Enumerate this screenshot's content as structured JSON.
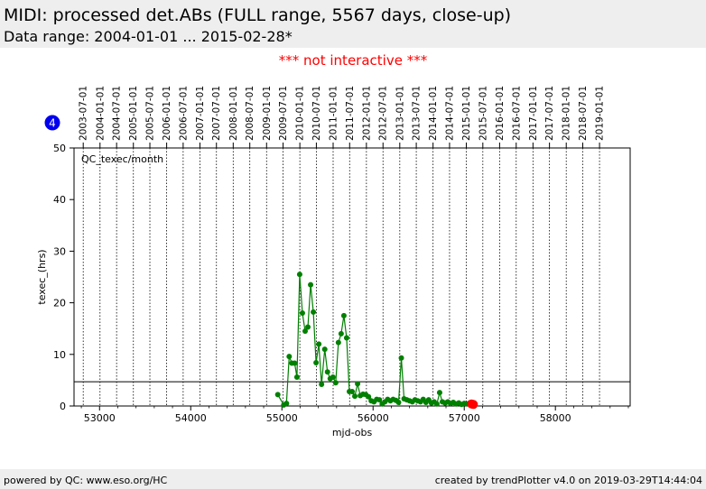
{
  "header": {
    "title": "MIDI: processed det.ABs (FULL range, 5567 days, close-up)",
    "subtitle": "Data range: 2004-01-01 ... 2015-02-28*"
  },
  "notice": "*** not interactive ***",
  "badge": "4",
  "footer": {
    "left": "powered by QC: www.eso.org/HC",
    "right": "created by trendPlotter v4.0 on 2019-03-29T14:44:04"
  },
  "colors": {
    "series": "#008000",
    "latest_point": "#ff0000",
    "badge": "#0000ee",
    "notice": "#ff0000"
  },
  "chart_data": {
    "type": "line",
    "panel_label": "QC_texec/month",
    "xlabel": "mjd-obs",
    "ylabel": "texec_(hrs)",
    "xlim": [
      52720,
      58820
    ],
    "ylim": [
      0,
      50
    ],
    "x_ticks": [
      53000,
      54000,
      55000,
      56000,
      57000,
      58000
    ],
    "y_ticks": [
      0,
      10,
      20,
      30,
      40,
      50
    ],
    "reference_line_y": 4.7,
    "date_ticks": [
      {
        "label": "2003-07-01",
        "mjd": 52821
      },
      {
        "label": "2004-01-01",
        "mjd": 53005
      },
      {
        "label": "2004-07-01",
        "mjd": 53187
      },
      {
        "label": "2005-01-01",
        "mjd": 53371
      },
      {
        "label": "2005-07-01",
        "mjd": 53552
      },
      {
        "label": "2006-01-01",
        "mjd": 53736
      },
      {
        "label": "2006-07-01",
        "mjd": 53917
      },
      {
        "label": "2007-01-01",
        "mjd": 54101
      },
      {
        "label": "2007-07-01",
        "mjd": 54282
      },
      {
        "label": "2008-01-01",
        "mjd": 54466
      },
      {
        "label": "2008-07-01",
        "mjd": 54648
      },
      {
        "label": "2009-01-01",
        "mjd": 54832
      },
      {
        "label": "2009-07-01",
        "mjd": 55013
      },
      {
        "label": "2010-01-01",
        "mjd": 55197
      },
      {
        "label": "2010-07-01",
        "mjd": 55378
      },
      {
        "label": "2011-01-01",
        "mjd": 55562
      },
      {
        "label": "2011-07-01",
        "mjd": 55743
      },
      {
        "label": "2012-01-01",
        "mjd": 55927
      },
      {
        "label": "2012-07-01",
        "mjd": 56109
      },
      {
        "label": "2013-01-01",
        "mjd": 56293
      },
      {
        "label": "2013-07-01",
        "mjd": 56474
      },
      {
        "label": "2014-01-01",
        "mjd": 56658
      },
      {
        "label": "2014-07-01",
        "mjd": 56839
      },
      {
        "label": "2015-01-01",
        "mjd": 57023
      },
      {
        "label": "2015-07-01",
        "mjd": 57204
      },
      {
        "label": "2016-01-01",
        "mjd": 57388
      },
      {
        "label": "2016-07-01",
        "mjd": 57570
      },
      {
        "label": "2017-01-01",
        "mjd": 57754
      },
      {
        "label": "2017-07-01",
        "mjd": 57935
      },
      {
        "label": "2018-01-01",
        "mjd": 58119
      },
      {
        "label": "2018-07-01",
        "mjd": 58300
      },
      {
        "label": "2019-01-01",
        "mjd": 58484
      }
    ],
    "series": [
      {
        "x": [
          54955,
          55020,
          55050,
          55080,
          55110,
          55140,
          55165,
          55195,
          55225,
          55255,
          55285,
          55315,
          55345,
          55375,
          55405,
          55435,
          55470,
          55500,
          55530,
          55560,
          55590,
          55620,
          55650,
          55680,
          55710,
          55740,
          55770,
          55800,
          55830,
          55860,
          55890,
          55920,
          55950,
          55980,
          56010,
          56040,
          56070,
          56100,
          56130,
          56160,
          56190,
          56220,
          56250,
          56280,
          56310,
          56340,
          56370,
          56400,
          56430,
          56460,
          56490,
          56520,
          56550,
          56580,
          56610,
          56640,
          56670,
          56700,
          56730,
          56760,
          56790,
          56820,
          56850,
          56880,
          56910,
          56940,
          56970,
          57000,
          57030,
          57060
        ],
        "y": [
          2.2,
          0.2,
          0.5,
          9.6,
          8.3,
          8.3,
          5.6,
          25.5,
          18.0,
          14.5,
          15.3,
          23.5,
          18.2,
          8.4,
          12.0,
          4.2,
          11.0,
          6.6,
          5.3,
          5.6,
          4.5,
          12.3,
          14.0,
          17.5,
          13.2,
          2.8,
          2.8,
          1.9,
          4.3,
          2.0,
          2.3,
          2.2,
          1.8,
          1.0,
          0.8,
          1.3,
          1.2,
          0.4,
          0.8,
          1.3,
          1.0,
          1.3,
          1.1,
          0.7,
          9.3,
          1.4,
          1.2,
          1.0,
          0.8,
          1.2,
          1.0,
          0.8,
          1.3,
          0.7,
          1.2,
          0.6,
          0.8,
          0.4,
          2.6,
          0.8,
          0.6,
          0.8,
          0.5,
          0.7,
          0.4,
          0.6,
          0.3,
          0.5,
          0.4,
          0.6
        ]
      }
    ],
    "latest_points": {
      "x": [
        57080,
        57100
      ],
      "y": [
        0.4,
        0.3
      ]
    }
  }
}
